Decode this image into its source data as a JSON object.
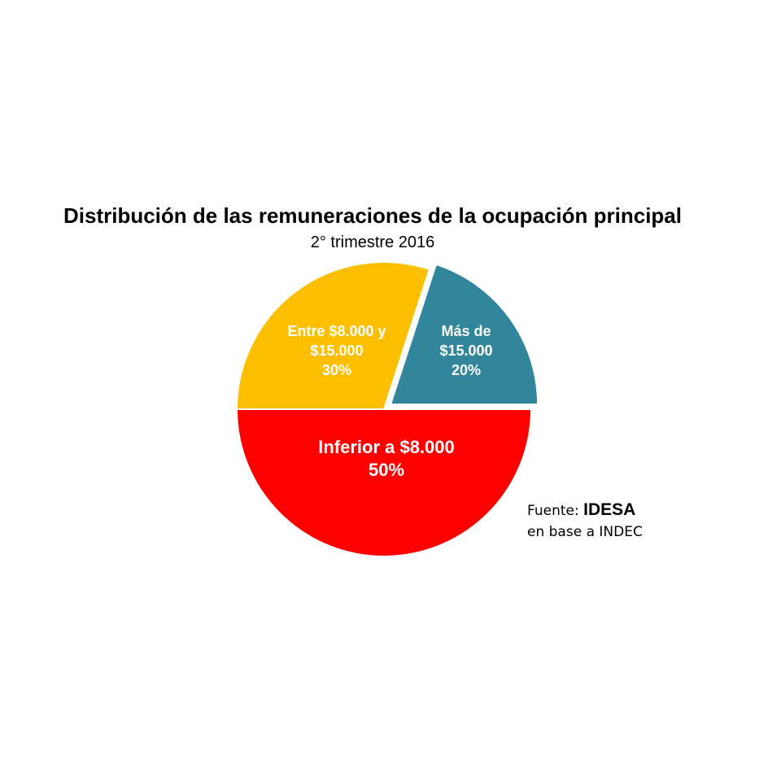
{
  "chart_data": {
    "type": "pie",
    "title": "Distribución de las remuneraciones de la ocupación principal",
    "subtitle": "2° trimestre 2016",
    "slices": [
      {
        "name": "Inferior a $8.000",
        "label_lines": [
          "Inferior a $8.000",
          "50%"
        ],
        "value": 50,
        "color": "#ff0000"
      },
      {
        "name": "Entre $8.000 y $15.000",
        "label_lines": [
          "Entre $8.000 y",
          "$15.000",
          "30%"
        ],
        "value": 30,
        "color": "#fbbf00"
      },
      {
        "name": "Más de $15.000",
        "label_lines": [
          "Más de",
          "$15.000",
          "20%"
        ],
        "value": 20,
        "color": "#31869b",
        "exploded": true
      }
    ]
  },
  "source": {
    "prefix": "Fuente:",
    "brand": "IDESA",
    "line2": "en base a INDEC"
  }
}
